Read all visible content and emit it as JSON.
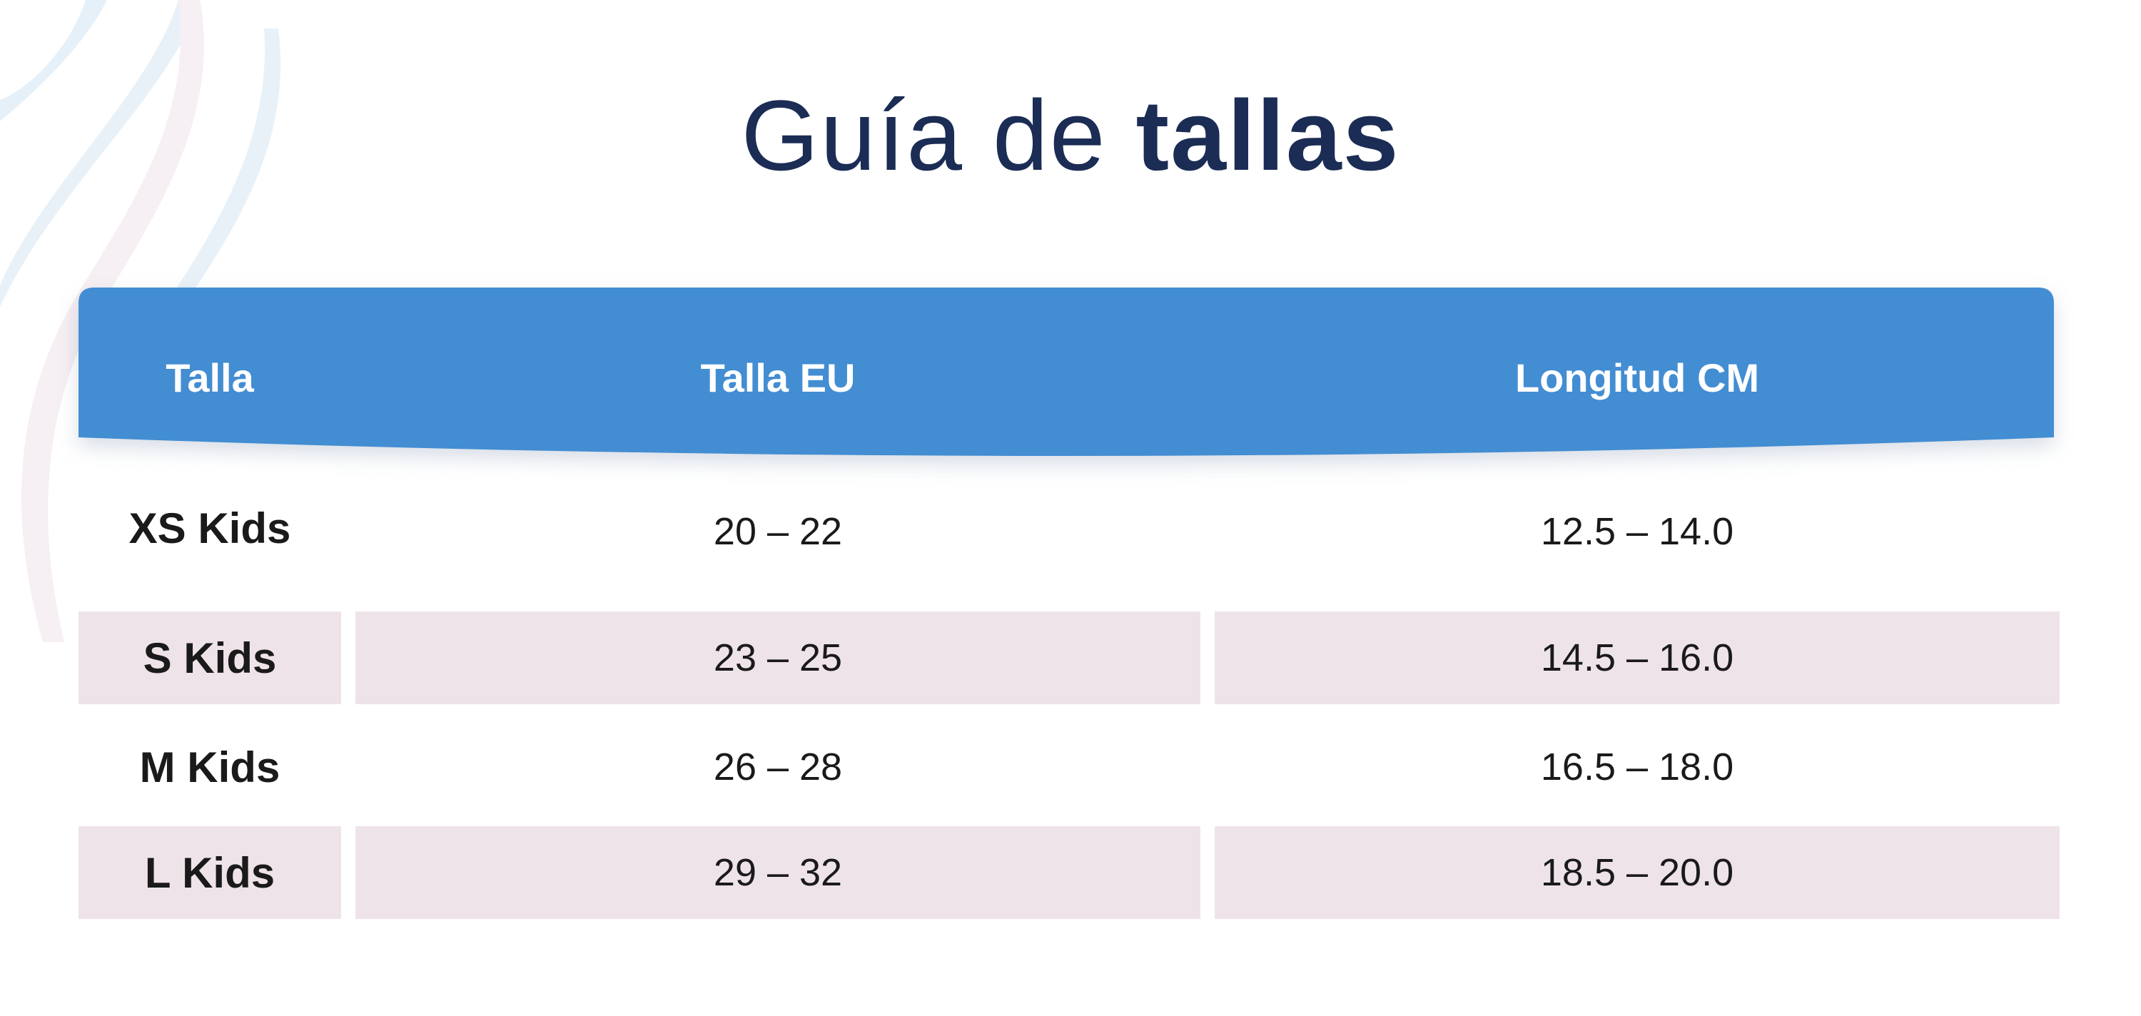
{
  "title": {
    "light": "Guía de",
    "bold": "tallas"
  },
  "table": {
    "headers": [
      "Talla",
      "Talla EU",
      "Longitud CM"
    ],
    "rows": [
      {
        "size": "XS Kids",
        "eu": "20 – 22",
        "cm": "12.5 – 14.0"
      },
      {
        "size": "S Kids",
        "eu": "23 – 25",
        "cm": "14.5 – 16.0"
      },
      {
        "size": "M Kids",
        "eu": "26 – 28",
        "cm": "16.5 – 18.0"
      },
      {
        "size": "L Kids",
        "eu": "29 – 32",
        "cm": "18.5 – 20.0"
      }
    ]
  },
  "colors": {
    "title": "#1b2c55",
    "header_band": "#438dd2",
    "shaded_row": "#efe3ea",
    "text": "#1a1a1a"
  }
}
